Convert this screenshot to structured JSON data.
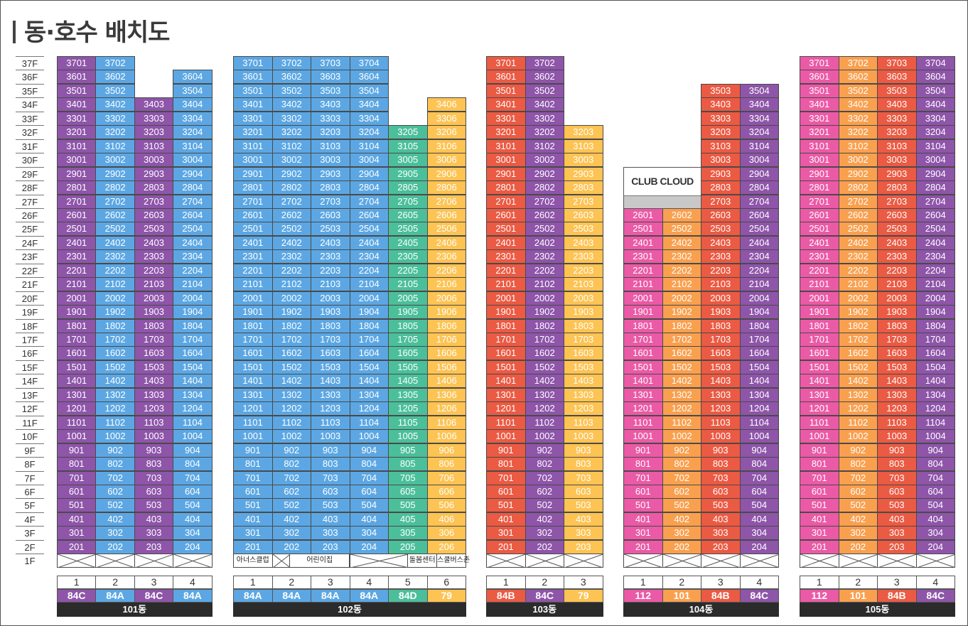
{
  "title": "동·호수 배치도",
  "floors": [
    "37F",
    "36F",
    "35F",
    "34F",
    "33F",
    "32F",
    "31F",
    "30F",
    "29F",
    "28F",
    "27F",
    "26F",
    "25F",
    "24F",
    "23F",
    "22F",
    "21F",
    "20F",
    "19F",
    "18F",
    "17F",
    "16F",
    "15F",
    "14F",
    "13F",
    "12F",
    "11F",
    "10F",
    "9F",
    "8F",
    "7F",
    "6F",
    "5F",
    "4F",
    "3F",
    "2F",
    "1F"
  ],
  "colors": {
    "purple": "#8e55a9",
    "blue": "#5ca7e3",
    "green": "#4bbf9a",
    "yellow": "#fdc353",
    "red": "#eb5a43",
    "pink": "#ea5aa6",
    "orange": "#f9a04f",
    "dark": "#2b2b2b"
  },
  "buildings": [
    {
      "name": "101동",
      "lines": [
        {
          "num": "1",
          "type": "84C",
          "color": "purple",
          "top": 37
        },
        {
          "num": "2",
          "type": "84A",
          "color": "blue",
          "top": 37
        },
        {
          "num": "3",
          "type": "84C",
          "color": "purple",
          "top": 34
        },
        {
          "num": "4",
          "type": "84A",
          "color": "blue",
          "top": 36
        }
      ],
      "ground": []
    },
    {
      "name": "102동",
      "lines": [
        {
          "num": "1",
          "type": "84A",
          "color": "blue",
          "top": 37
        },
        {
          "num": "2",
          "type": "84A",
          "color": "blue",
          "top": 37
        },
        {
          "num": "3",
          "type": "84A",
          "color": "blue",
          "top": 37
        },
        {
          "num": "4",
          "type": "84A",
          "color": "blue",
          "top": 37
        },
        {
          "num": "5",
          "type": "84D",
          "color": "green",
          "top": 32
        },
        {
          "num": "6",
          "type": "79",
          "color": "yellow",
          "top": 34
        }
      ],
      "ground": [
        "아너스클럽",
        "어린이집",
        "돌봄센터",
        "스쿨버스존"
      ]
    },
    {
      "name": "103동",
      "lines": [
        {
          "num": "1",
          "type": "84B",
          "color": "red",
          "top": 37
        },
        {
          "num": "2",
          "type": "84C",
          "color": "purple",
          "top": 37
        },
        {
          "num": "3",
          "type": "79",
          "color": "yellow",
          "top": 32
        }
      ],
      "ground": []
    },
    {
      "name": "104동",
      "lines": [
        {
          "num": "1",
          "type": "112",
          "color": "pink",
          "top": 26
        },
        {
          "num": "2",
          "type": "101",
          "color": "orange",
          "top": 26
        },
        {
          "num": "3",
          "type": "84B",
          "color": "red",
          "top": 35
        },
        {
          "num": "4",
          "type": "84C",
          "color": "purple",
          "top": 35
        }
      ],
      "ground": [],
      "club": "CLUB CLOUD"
    },
    {
      "name": "105동",
      "lines": [
        {
          "num": "1",
          "type": "112",
          "color": "pink",
          "top": 37
        },
        {
          "num": "2",
          "type": "101",
          "color": "orange",
          "top": 37
        },
        {
          "num": "3",
          "type": "84B",
          "color": "red",
          "top": 37
        },
        {
          "num": "4",
          "type": "84C",
          "color": "purple",
          "top": 37
        }
      ],
      "ground": []
    }
  ]
}
